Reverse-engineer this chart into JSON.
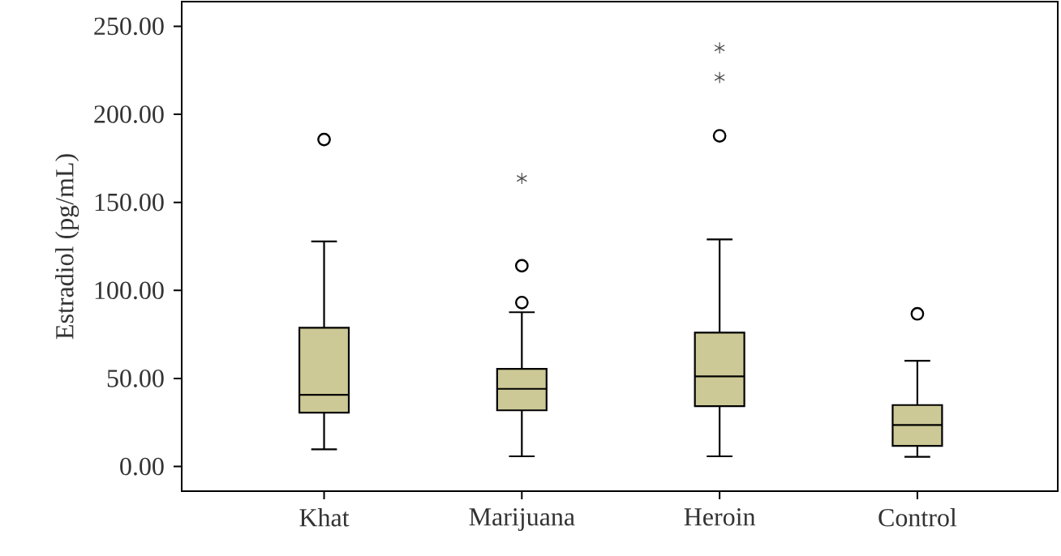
{
  "chart_data": {
    "type": "box",
    "categories": [
      "Khat",
      "Marijuana",
      "Heroin",
      "Control"
    ],
    "ylabel": "Estradiol (pg/mL)",
    "ylim": [
      -14,
      264
    ],
    "yticks": [
      {
        "value": 0,
        "label": "0.00"
      },
      {
        "value": 50,
        "label": "50.00"
      },
      {
        "value": 100,
        "label": "100.00"
      },
      {
        "value": 150,
        "label": "150.00"
      },
      {
        "value": 200,
        "label": "200.00"
      },
      {
        "value": 250,
        "label": "250.00"
      }
    ],
    "series": [
      {
        "color": "#cdc996",
        "boxes": [
          {
            "low": 9.8,
            "q1": 30.6,
            "median": 40.7,
            "q3": 78.8,
            "high": 127.8,
            "outliers": [
              185.7
            ]
          },
          {
            "low": 5.8,
            "q1": 31.9,
            "median": 44.1,
            "q3": 55.4,
            "high": 87.6,
            "outliers": [
              93.1,
              114,
              163.6
            ]
          },
          {
            "low": 5.8,
            "q1": 34.3,
            "median": 51.2,
            "q3": 76,
            "high": 129,
            "outliers": [
              187.8,
              220.9,
              237.7
            ]
          },
          {
            "low": 5.5,
            "q1": 11.7,
            "median": 23.6,
            "q3": 34.9,
            "high": 60,
            "outliers": [
              86.7
            ]
          }
        ]
      }
    ]
  }
}
